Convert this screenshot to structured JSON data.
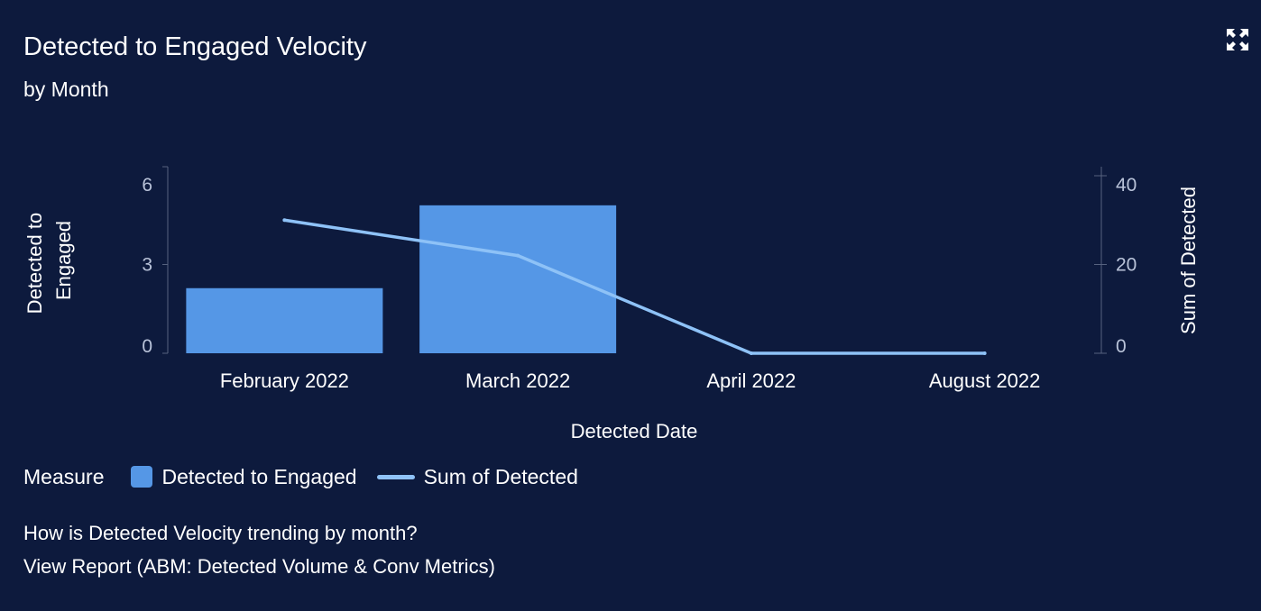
{
  "header": {
    "title": "Detected to Engaged Velocity",
    "subtitle": "by Month"
  },
  "icons": {
    "expand": "expand-icon"
  },
  "colors": {
    "background": "#0d1a3d",
    "bar": "#5597e6",
    "line": "#8ec2f7",
    "axis": "#56627f",
    "tick_text": "#b9c3d9",
    "text": "#ffffff"
  },
  "chart_data": {
    "type": "bar",
    "categories": [
      "February 2022",
      "March 2022",
      "April 2022",
      "August 2022"
    ],
    "xlabel": "Detected Date",
    "series": [
      {
        "name": "Detected to Engaged",
        "type": "bar",
        "axis": "left",
        "values": [
          2.2,
          5.0,
          null,
          null
        ]
      },
      {
        "name": "Sum of Detected",
        "type": "line",
        "axis": "right",
        "values": [
          30,
          22,
          0,
          0
        ]
      }
    ],
    "y_left": {
      "label": "Detected to Engaged",
      "label_lines": [
        "Detected to",
        "Engaged"
      ],
      "ylim": [
        0,
        6
      ],
      "ticks": [
        0,
        3,
        6
      ]
    },
    "y_right": {
      "label": "Sum of Detected",
      "ylim": [
        0,
        40
      ],
      "ticks": [
        0,
        20,
        40
      ]
    },
    "legend": {
      "title": "Measure",
      "placement": "bottom-left"
    }
  },
  "footer": {
    "question": "How is Detected Velocity trending by month?",
    "report_link": "View Report (ABM: Detected Volume & Conv Metrics)"
  }
}
